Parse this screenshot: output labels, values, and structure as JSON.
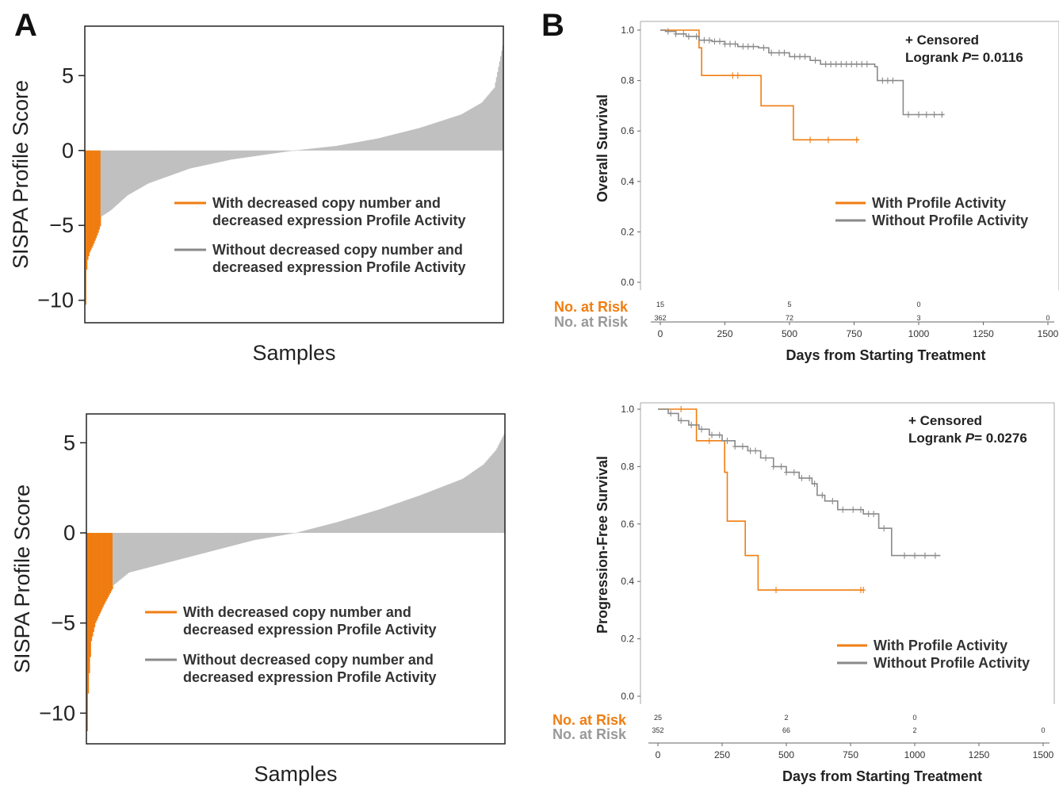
{
  "panels": {
    "a_label": "A",
    "b_label": "B"
  },
  "colors": {
    "orange": "#f07d11",
    "gray": "#c0c0c0",
    "gray_line": "#8a8a8a",
    "risk_gray": "#999999"
  },
  "chart_data": [
    {
      "type": "bar",
      "id": "A-top",
      "title": "",
      "xlabel": "Samples",
      "ylabel": "SISPA Profile Score",
      "ylim": [
        -11.5,
        8.3
      ],
      "yticks": [
        5,
        0,
        -5,
        -10
      ],
      "ytick_labels": [
        "5",
        "0",
        "−5",
        "−10"
      ],
      "n_samples": 400,
      "orange_samples": 15,
      "series": [
        {
          "name": "With decreased  copy number and decreased expression Profile Activity",
          "color": "#f07d11",
          "curve": [
            [
              0,
              -10.3
            ],
            [
              0.003,
              -7.5
            ],
            [
              0.01,
              -6.8
            ],
            [
              0.02,
              -6.2
            ],
            [
              0.03,
              -5.5
            ],
            [
              0.038,
              -4.8
            ]
          ]
        },
        {
          "name": "Without decreased  copy number and decreased expression Profile Activity",
          "color": "#c0c0c0",
          "curve": [
            [
              0.038,
              -4.4
            ],
            [
              0.06,
              -4.0
            ],
            [
              0.1,
              -3.0
            ],
            [
              0.15,
              -2.2
            ],
            [
              0.25,
              -1.2
            ],
            [
              0.35,
              -0.6
            ],
            [
              0.45,
              -0.2
            ],
            [
              0.5,
              0.0
            ],
            [
              0.6,
              0.3
            ],
            [
              0.7,
              0.8
            ],
            [
              0.8,
              1.5
            ],
            [
              0.9,
              2.4
            ],
            [
              0.95,
              3.2
            ],
            [
              0.98,
              4.2
            ],
            [
              1.0,
              7.0
            ]
          ]
        }
      ],
      "legend": [
        {
          "line1": "With decreased  copy number and",
          "line2": "decreased expression  Profile Activity"
        },
        {
          "line1": "Without decreased  copy number and",
          "line2": "decreased expression  Profile Activity"
        }
      ]
    },
    {
      "type": "bar",
      "id": "A-bottom",
      "title": "",
      "xlabel": "Samples",
      "ylabel": "SISPA Profile Score",
      "ylim": [
        -11.7,
        6.6
      ],
      "yticks": [
        5,
        0,
        -5,
        -10
      ],
      "ytick_labels": [
        "5",
        "0",
        "−5",
        "−10"
      ],
      "n_samples": 400,
      "orange_samples": 25,
      "series": [
        {
          "name": "With decreased  copy number and decreased expression Profile Activity",
          "color": "#f07d11",
          "curve": [
            [
              0,
              -11.0
            ],
            [
              0.003,
              -8.5
            ],
            [
              0.01,
              -6.0
            ],
            [
              0.02,
              -5.0
            ],
            [
              0.04,
              -4.0
            ],
            [
              0.063,
              -3.0
            ]
          ]
        },
        {
          "name": "Without decreased  copy number and decreased expression Profile Activity",
          "color": "#c0c0c0",
          "curve": [
            [
              0.063,
              -2.9
            ],
            [
              0.1,
              -2.2
            ],
            [
              0.2,
              -1.6
            ],
            [
              0.3,
              -1.0
            ],
            [
              0.4,
              -0.4
            ],
            [
              0.5,
              0.0
            ],
            [
              0.6,
              0.6
            ],
            [
              0.7,
              1.3
            ],
            [
              0.8,
              2.1
            ],
            [
              0.9,
              3.0
            ],
            [
              0.95,
              3.8
            ],
            [
              0.98,
              4.6
            ],
            [
              1.0,
              5.5
            ]
          ]
        }
      ],
      "legend": [
        {
          "line1": "With decreased  copy number and",
          "line2": "decreased expression  Profile Activity"
        },
        {
          "line1": "Without decreased  copy number and",
          "line2": "decreased expression  Profile Activity"
        }
      ]
    },
    {
      "type": "line",
      "id": "B-top",
      "title": "",
      "xlabel": "Days from  Starting Treatment",
      "ylabel": "Overall Survival",
      "xlim": [
        0,
        1500
      ],
      "ylim": [
        0,
        1.0
      ],
      "xticks": [
        0,
        250,
        500,
        750,
        1000,
        1250,
        1500
      ],
      "yticks": [
        0.0,
        0.2,
        0.4,
        0.6,
        0.8,
        1.0
      ],
      "ytick_labels": [
        "0.0",
        "0.2",
        "0.4",
        "0.6",
        "0.8",
        "1.0"
      ],
      "censored_label": "+ Censored",
      "logrank_label": "Logrank ",
      "logrank_p_symbol": "P",
      "logrank_p": "= 0.0116",
      "series": [
        {
          "name": "With Profile Activity",
          "color": "#f07d11",
          "steps": [
            [
              0,
              1.0
            ],
            [
              130,
              1.0
            ],
            [
              150,
              0.93
            ],
            [
              160,
              0.82
            ],
            [
              380,
              0.82
            ],
            [
              390,
              0.7
            ],
            [
              510,
              0.7
            ],
            [
              515,
              0.565
            ],
            [
              770,
              0.565
            ]
          ],
          "censored": [
            280,
            300,
            580,
            650,
            760
          ]
        },
        {
          "name": "Without Profile Activity",
          "color": "#8a8a8a",
          "steps": [
            [
              0,
              1.0
            ],
            [
              20,
              0.995
            ],
            [
              60,
              0.985
            ],
            [
              100,
              0.975
            ],
            [
              150,
              0.96
            ],
            [
              200,
              0.955
            ],
            [
              250,
              0.945
            ],
            [
              300,
              0.935
            ],
            [
              380,
              0.93
            ],
            [
              420,
              0.91
            ],
            [
              500,
              0.895
            ],
            [
              580,
              0.88
            ],
            [
              620,
              0.865
            ],
            [
              800,
              0.865
            ],
            [
              830,
              0.855
            ],
            [
              840,
              0.8
            ],
            [
              930,
              0.8
            ],
            [
              940,
              0.665
            ],
            [
              1100,
              0.665
            ]
          ],
          "censored": [
            30,
            60,
            90,
            110,
            140,
            170,
            190,
            210,
            230,
            250,
            270,
            290,
            320,
            340,
            360,
            400,
            430,
            460,
            480,
            520,
            540,
            560,
            600,
            640,
            660,
            680,
            700,
            720,
            740,
            760,
            780,
            800,
            860,
            880,
            900,
            960,
            1000,
            1030,
            1060,
            1090
          ]
        }
      ],
      "risk": {
        "label": "No. at Risk",
        "at": [
          0,
          500,
          1000,
          1500
        ],
        "with": [
          "15",
          "5",
          "0",
          ""
        ],
        "without": [
          "362",
          "72",
          "3",
          "0"
        ]
      }
    },
    {
      "type": "line",
      "id": "B-bottom",
      "title": "",
      "xlabel": "Days from  Starting Treatment",
      "ylabel": "Progression-Free Survival",
      "xlim": [
        0,
        1500
      ],
      "ylim": [
        0,
        1.0
      ],
      "xticks": [
        0,
        250,
        500,
        750,
        1000,
        1250,
        1500
      ],
      "yticks": [
        0.0,
        0.2,
        0.4,
        0.6,
        0.8,
        1.0
      ],
      "ytick_labels": [
        "0.0",
        "0.2",
        "0.4",
        "0.6",
        "0.8",
        "1.0"
      ],
      "censored_label": "+ Censored",
      "logrank_label": "Logrank ",
      "logrank_p_symbol": "P",
      "logrank_p": "= 0.0276",
      "series": [
        {
          "name": "With Profile Activity",
          "color": "#f07d11",
          "steps": [
            [
              0,
              1.0
            ],
            [
              130,
              1.0
            ],
            [
              150,
              0.89
            ],
            [
              250,
              0.89
            ],
            [
              260,
              0.78
            ],
            [
              270,
              0.61
            ],
            [
              330,
              0.61
            ],
            [
              340,
              0.49
            ],
            [
              380,
              0.49
            ],
            [
              390,
              0.37
            ],
            [
              800,
              0.37
            ]
          ],
          "censored": [
            90,
            200,
            460,
            790,
            800
          ]
        },
        {
          "name": "Without Profile Activity",
          "color": "#8a8a8a",
          "steps": [
            [
              0,
              1.0
            ],
            [
              40,
              0.985
            ],
            [
              80,
              0.96
            ],
            [
              120,
              0.945
            ],
            [
              160,
              0.93
            ],
            [
              200,
              0.91
            ],
            [
              250,
              0.89
            ],
            [
              300,
              0.87
            ],
            [
              350,
              0.855
            ],
            [
              400,
              0.83
            ],
            [
              450,
              0.8
            ],
            [
              500,
              0.78
            ],
            [
              550,
              0.76
            ],
            [
              600,
              0.74
            ],
            [
              620,
              0.7
            ],
            [
              650,
              0.68
            ],
            [
              700,
              0.65
            ],
            [
              800,
              0.635
            ],
            [
              850,
              0.635
            ],
            [
              860,
              0.585
            ],
            [
              900,
              0.585
            ],
            [
              910,
              0.49
            ],
            [
              1100,
              0.49
            ]
          ],
          "censored": [
            50,
            90,
            130,
            170,
            210,
            240,
            270,
            300,
            330,
            360,
            380,
            420,
            450,
            480,
            500,
            530,
            560,
            590,
            610,
            640,
            680,
            720,
            760,
            790,
            820,
            840,
            880,
            960,
            1000,
            1040,
            1080
          ]
        }
      ],
      "risk": {
        "label": "No. at Risk",
        "at": [
          0,
          500,
          1000,
          1500
        ],
        "with": [
          "25",
          "2",
          "0",
          ""
        ],
        "without": [
          "352",
          "66",
          "2",
          "0"
        ]
      }
    }
  ]
}
